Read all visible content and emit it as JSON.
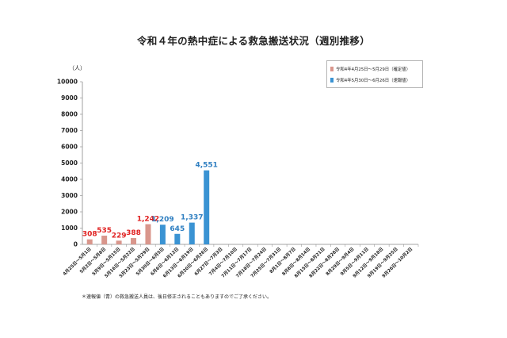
{
  "chart_data": {
    "type": "bar",
    "title": "令和４年の熱中症による救急搬送状況（週別推移）",
    "ylabel": "（人）",
    "ylim": [
      0,
      10000
    ],
    "yticks": [
      0,
      1000,
      2000,
      3000,
      4000,
      5000,
      6000,
      7000,
      8000,
      9000,
      10000
    ],
    "grid": false,
    "legend_position": "top-right",
    "categories": [
      "4月25日～5月1日",
      "5月2日～5月8日",
      "5月9日～5月15日",
      "5月16日～5月22日",
      "5月23日～5月29日",
      "5月30日～6月5日",
      "6月6日～6月12日",
      "6月13日～6月19日",
      "6月20日～6月26日",
      "6月27日～7月3日",
      "7月4日～7月10日",
      "7月11日～7月17日",
      "7月18日～7月24日",
      "7月25日～7月31日",
      "8月1日～8月7日",
      "8月8日～8月14日",
      "8月15日～8月21日",
      "8月22日～8月28日",
      "8月29日～9月4日",
      "9月5日～9月11日",
      "9月12日～9月18日",
      "9月19日～9月25日",
      "9月26日～10月2日"
    ],
    "series": [
      {
        "name": "令和4年4月25日～5月29日（確定値）",
        "color": "#d9968c",
        "label_color": "#e02020",
        "values": [
          308,
          535,
          229,
          388,
          1242,
          null,
          null,
          null,
          null,
          null,
          null,
          null,
          null,
          null,
          null,
          null,
          null,
          null,
          null,
          null,
          null,
          null,
          null
        ],
        "labels": [
          "308",
          "535",
          "229",
          "388",
          "1,242"
        ]
      },
      {
        "name": "令和4年5月30日～6月26日（速報値）",
        "color": "#3a93d3",
        "label_color": "#2f7fc1",
        "values": [
          null,
          null,
          null,
          null,
          null,
          1209,
          645,
          1337,
          4551,
          null,
          null,
          null,
          null,
          null,
          null,
          null,
          null,
          null,
          null,
          null,
          null,
          null,
          null
        ],
        "labels": [
          "1,209",
          "645",
          "1,337",
          "4,551"
        ]
      }
    ]
  },
  "footnote": "＊速報値（青）の救急搬送人員は、後日修正されることもありますのでご了承ください。"
}
